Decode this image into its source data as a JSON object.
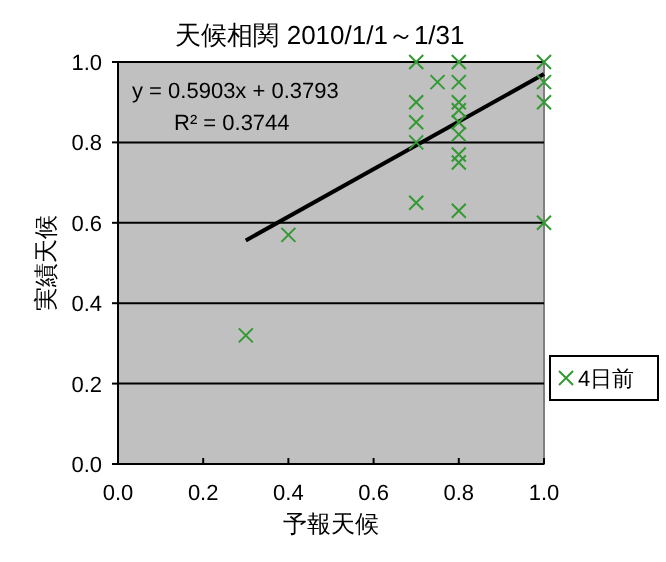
{
  "chart_data": {
    "type": "scatter",
    "title": "天候相関 2010/1/1～1/31",
    "xlabel": "予報天候",
    "ylabel": "実績天候",
    "xlim": [
      0,
      1
    ],
    "xticks": [
      {
        "value": 0,
        "label": "0.0"
      },
      0.2,
      0.4,
      0.6,
      0.8,
      {
        "value": 1,
        "label": "1.0"
      }
    ],
    "ylim": [
      0,
      1
    ],
    "yticks": [
      {
        "value": 0,
        "label": "0.0"
      },
      0.2,
      0.4,
      0.6,
      0.8,
      {
        "value": 1,
        "label": "1.0"
      }
    ],
    "grid": "y",
    "legend": "right",
    "annotations": [
      "y = 0.5903x + 0.3793",
      "R² = 0.3744"
    ],
    "series": [
      {
        "name": "4日前",
        "color": "#339933",
        "marker": "cross",
        "x": [
          0.3,
          0.4,
          0.7,
          0.7,
          0.7,
          0.7,
          0.7,
          0.75,
          0.8,
          0.8,
          0.8,
          0.8,
          0.8,
          0.8,
          0.8,
          0.8,
          0.8,
          1.0,
          1.0,
          1.0,
          1.0
        ],
        "values": [
          0.32,
          0.57,
          1.0,
          0.9,
          0.85,
          0.8,
          0.65,
          0.95,
          1.0,
          0.95,
          0.9,
          0.88,
          0.85,
          0.82,
          0.77,
          0.75,
          0.63,
          1.0,
          0.95,
          0.9,
          0.6
        ]
      },
      {
        "type": "line",
        "color": "#000000",
        "marker": "none",
        "x": [
          0.3,
          1.0
        ],
        "values": [
          0.556,
          0.97
        ]
      }
    ]
  }
}
